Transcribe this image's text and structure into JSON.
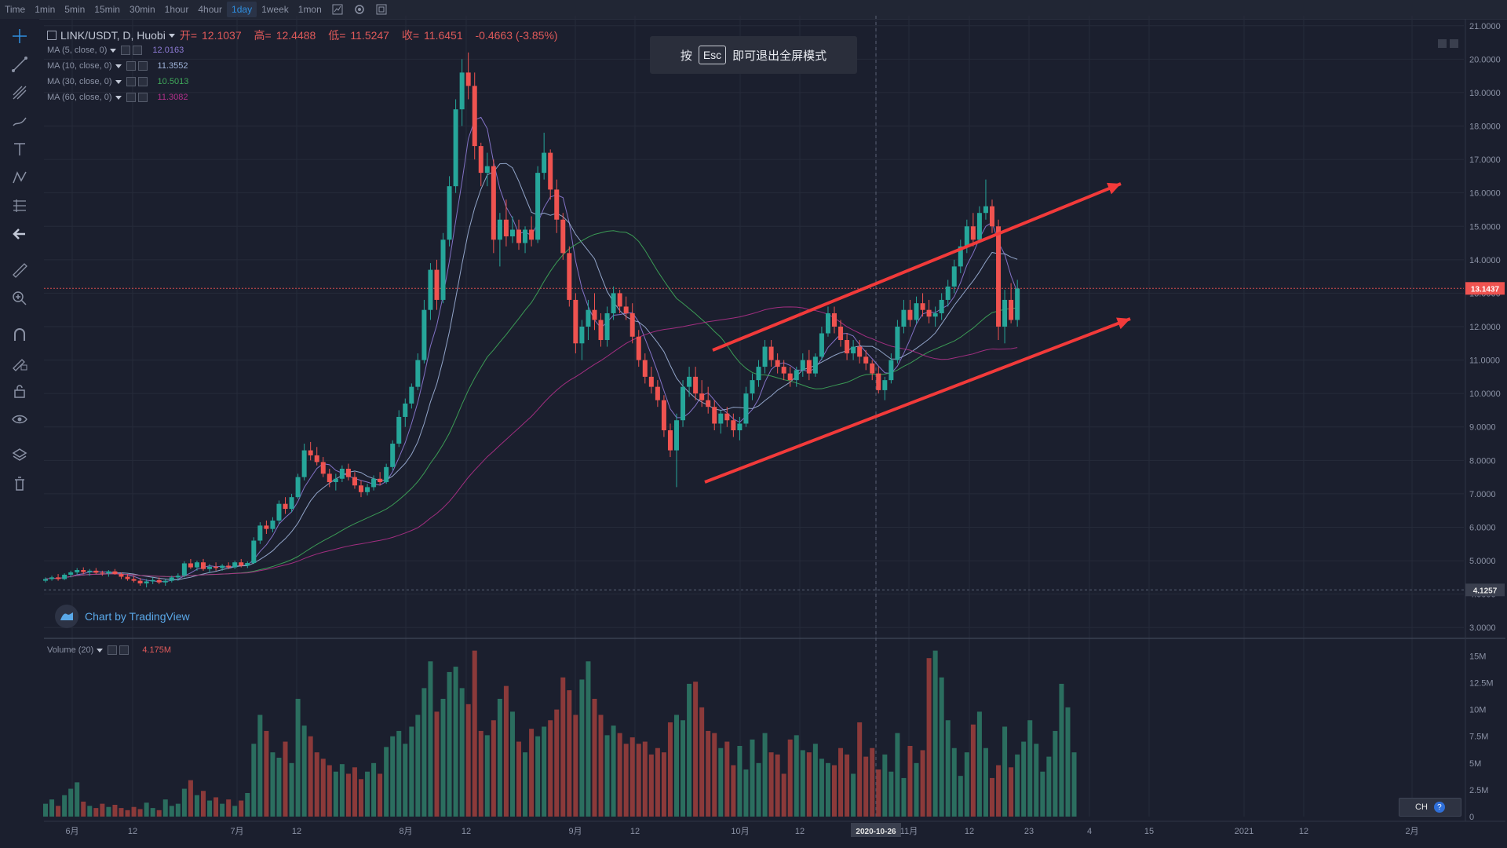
{
  "toolbar": {
    "intervals": [
      "Time",
      "1min",
      "5min",
      "15min",
      "30min",
      "1hour",
      "4hour",
      "1day",
      "1week",
      "1mon"
    ],
    "active": "1day",
    "icons": [
      "chart-type-icon",
      "settings-icon",
      "fullscreen-icon"
    ]
  },
  "left_tools": [
    "crosshair-icon",
    "trend-line-icon",
    "fib-tool-icon",
    "brush-icon",
    "text-icon",
    "pattern-icon",
    "prediction-icon",
    "back-arrow-icon",
    "ruler-icon",
    "zoom-in-icon",
    "magnet-icon",
    "lock-drawing-icon",
    "lock-icon",
    "eye-icon",
    "layers-icon",
    "trash-icon"
  ],
  "legend": {
    "symbol": "LINK/USDT, D, Huobi",
    "open_label": "开=",
    "open": "12.1037",
    "high_label": "高=",
    "high": "12.4488",
    "low_label": "低=",
    "low": "11.5247",
    "close_label": "收=",
    "close": "11.6451",
    "change": "-0.4663 (-3.85%)"
  },
  "mas": [
    {
      "label": "MA (5, close, 0)",
      "value": "12.0163",
      "color": "#8e7bd6"
    },
    {
      "label": "MA (10, close, 0)",
      "value": "11.3552",
      "color": "#9fb3d9"
    },
    {
      "label": "MA (30, close, 0)",
      "value": "10.5013",
      "color": "#3fa85a"
    },
    {
      "label": "MA (60, close, 0)",
      "value": "11.3082",
      "color": "#b0308a"
    }
  ],
  "esc_hint": {
    "before": "按",
    "key": "Esc",
    "after": "即可退出全屏模式"
  },
  "watermark": "Chart by TradingView",
  "volume_legend": {
    "label": "Volume (20)",
    "value": "4.175M"
  },
  "lang_button": {
    "label": "CH",
    "help": "?"
  },
  "colors": {
    "up": "#26a69a",
    "down": "#ef5350",
    "up_vol": "#2b6e5f",
    "down_vol": "#8b3a3a",
    "arrow": "#f23a3a",
    "bg": "#1b1f2e",
    "grid": "#262b3a"
  },
  "chart_data": {
    "type": "candlestick",
    "title": "LINK/USDT",
    "price_axis": {
      "ticks": [
        "21.0000",
        "20.0000",
        "19.0000",
        "18.0000",
        "17.0000",
        "16.0000",
        "15.0000",
        "14.0000",
        "13.0000",
        "12.0000",
        "11.0000",
        "10.0000",
        "9.0000",
        "8.0000",
        "7.0000",
        "6.0000",
        "5.0000",
        "4.0000",
        "3.0000"
      ],
      "range": [
        2.7,
        21.3
      ]
    },
    "volume_axis": {
      "ticks": [
        "15M",
        "12.5M",
        "10M",
        "7.5M",
        "5M",
        "2.5M",
        "0"
      ],
      "range": [
        0,
        16.5
      ]
    },
    "x_axis": {
      "ticks": [
        "6月",
        "12",
        "7月",
        "12",
        "8月",
        "12",
        "9月",
        "12",
        "10月",
        "12",
        "2020-10-26",
        "11月",
        "12",
        "23",
        "4",
        "15",
        "2021",
        "12",
        "2月"
      ]
    },
    "price_labels": {
      "current": "13.1437",
      "low_ref": "4.1257"
    },
    "annotations": [
      "upper-channel-arrow",
      "lower-channel-arrow"
    ],
    "ohlc": [
      [
        4.4,
        4.5,
        4.35,
        4.45
      ],
      [
        4.45,
        4.55,
        4.4,
        4.5
      ],
      [
        4.5,
        4.6,
        4.4,
        4.45
      ],
      [
        4.45,
        4.62,
        4.42,
        4.58
      ],
      [
        4.58,
        4.7,
        4.5,
        4.65
      ],
      [
        4.65,
        4.78,
        4.58,
        4.72
      ],
      [
        4.72,
        4.8,
        4.6,
        4.66
      ],
      [
        4.66,
        4.75,
        4.55,
        4.7
      ],
      [
        4.7,
        4.78,
        4.6,
        4.64
      ],
      [
        4.64,
        4.7,
        4.55,
        4.62
      ],
      [
        4.62,
        4.72,
        4.52,
        4.68
      ],
      [
        4.68,
        4.75,
        4.58,
        4.6
      ],
      [
        4.6,
        4.65,
        4.45,
        4.52
      ],
      [
        4.52,
        4.6,
        4.4,
        4.45
      ],
      [
        4.45,
        4.55,
        4.35,
        4.4
      ],
      [
        4.4,
        4.48,
        4.25,
        4.32
      ],
      [
        4.32,
        4.45,
        4.2,
        4.38
      ],
      [
        4.38,
        4.5,
        4.3,
        4.42
      ],
      [
        4.42,
        4.5,
        4.3,
        4.35
      ],
      [
        4.35,
        4.45,
        4.25,
        4.4
      ],
      [
        4.4,
        4.55,
        4.35,
        4.5
      ],
      [
        4.5,
        4.62,
        4.4,
        4.55
      ],
      [
        4.55,
        4.98,
        4.5,
        4.92
      ],
      [
        4.92,
        5.05,
        4.75,
        4.8
      ],
      [
        4.8,
        5.0,
        4.7,
        4.95
      ],
      [
        4.95,
        5.05,
        4.7,
        4.75
      ],
      [
        4.75,
        4.9,
        4.65,
        4.82
      ],
      [
        4.82,
        4.95,
        4.7,
        4.78
      ],
      [
        4.78,
        4.9,
        4.7,
        4.85
      ],
      [
        4.85,
        4.95,
        4.75,
        4.8
      ],
      [
        4.8,
        5.0,
        4.75,
        4.95
      ],
      [
        4.95,
        5.05,
        4.8,
        4.85
      ],
      [
        4.85,
        4.98,
        4.78,
        4.93
      ],
      [
        4.93,
        5.7,
        4.9,
        5.6
      ],
      [
        5.6,
        6.15,
        5.5,
        6.05
      ],
      [
        6.05,
        6.2,
        5.8,
        5.95
      ],
      [
        5.95,
        6.3,
        5.85,
        6.2
      ],
      [
        6.2,
        6.8,
        6.1,
        6.7
      ],
      [
        6.7,
        6.9,
        6.4,
        6.55
      ],
      [
        6.55,
        7.0,
        6.45,
        6.9
      ],
      [
        6.9,
        7.6,
        6.85,
        7.5
      ],
      [
        7.5,
        8.5,
        7.4,
        8.3
      ],
      [
        8.3,
        8.55,
        8.0,
        8.15
      ],
      [
        8.15,
        8.4,
        7.85,
        7.95
      ],
      [
        7.95,
        8.1,
        7.5,
        7.6
      ],
      [
        7.6,
        7.75,
        7.2,
        7.35
      ],
      [
        7.35,
        7.6,
        7.1,
        7.45
      ],
      [
        7.45,
        7.85,
        7.35,
        7.75
      ],
      [
        7.75,
        7.9,
        7.4,
        7.5
      ],
      [
        7.5,
        7.65,
        7.15,
        7.25
      ],
      [
        7.25,
        7.4,
        6.9,
        7.05
      ],
      [
        7.05,
        7.3,
        6.95,
        7.2
      ],
      [
        7.2,
        7.55,
        7.1,
        7.45
      ],
      [
        7.45,
        7.65,
        7.25,
        7.35
      ],
      [
        7.35,
        7.9,
        7.3,
        7.8
      ],
      [
        7.8,
        8.6,
        7.7,
        8.5
      ],
      [
        8.5,
        9.5,
        8.4,
        9.3
      ],
      [
        9.3,
        9.85,
        9.0,
        9.7
      ],
      [
        9.7,
        10.3,
        9.55,
        10.2
      ],
      [
        10.2,
        11.2,
        10.1,
        11.0
      ],
      [
        11.0,
        12.8,
        10.9,
        12.5
      ],
      [
        12.5,
        13.9,
        12.2,
        13.7
      ],
      [
        13.7,
        14.0,
        12.5,
        12.8
      ],
      [
        12.8,
        14.8,
        12.7,
        14.6
      ],
      [
        14.6,
        16.5,
        14.4,
        16.2
      ],
      [
        16.2,
        18.8,
        16.0,
        18.5
      ],
      [
        18.5,
        20.0,
        18.0,
        19.6
      ],
      [
        19.6,
        20.2,
        18.8,
        19.2
      ],
      [
        19.2,
        19.6,
        17.0,
        17.4
      ],
      [
        17.4,
        17.5,
        16.2,
        16.6
      ],
      [
        16.6,
        17.2,
        16.2,
        16.8
      ],
      [
        16.8,
        17.0,
        14.2,
        14.6
      ],
      [
        14.6,
        15.4,
        13.8,
        15.2
      ],
      [
        15.2,
        15.8,
        14.4,
        14.7
      ],
      [
        14.7,
        15.3,
        14.5,
        14.9
      ],
      [
        14.9,
        15.2,
        14.3,
        14.5
      ],
      [
        14.5,
        15.0,
        14.2,
        14.9
      ],
      [
        14.9,
        15.3,
        14.4,
        14.6
      ],
      [
        14.6,
        16.8,
        14.5,
        16.6
      ],
      [
        16.6,
        17.8,
        16.4,
        17.2
      ],
      [
        17.2,
        17.3,
        15.8,
        16.1
      ],
      [
        16.1,
        16.4,
        14.8,
        15.2
      ],
      [
        15.2,
        15.4,
        14.0,
        14.2
      ],
      [
        14.2,
        14.4,
        12.6,
        12.8
      ],
      [
        12.8,
        13.0,
        11.2,
        11.5
      ],
      [
        11.5,
        12.2,
        11.0,
        12.0
      ],
      [
        12.0,
        12.8,
        11.6,
        12.5
      ],
      [
        12.5,
        13.0,
        11.9,
        12.2
      ],
      [
        12.2,
        12.4,
        11.4,
        11.6
      ],
      [
        11.6,
        12.6,
        11.4,
        12.4
      ],
      [
        12.4,
        13.2,
        12.2,
        13.0
      ],
      [
        13.0,
        13.1,
        12.4,
        12.6
      ],
      [
        12.6,
        12.9,
        12.2,
        12.4
      ],
      [
        12.4,
        12.7,
        11.5,
        11.7
      ],
      [
        11.7,
        11.9,
        10.8,
        11.0
      ],
      [
        11.0,
        11.2,
        10.3,
        10.5
      ],
      [
        10.5,
        10.8,
        10.0,
        10.2
      ],
      [
        10.2,
        10.4,
        9.6,
        9.8
      ],
      [
        9.8,
        9.95,
        8.7,
        8.9
      ],
      [
        8.9,
        9.1,
        8.1,
        8.3
      ],
      [
        8.3,
        9.4,
        7.2,
        9.2
      ],
      [
        9.2,
        10.4,
        9.0,
        10.2
      ],
      [
        10.2,
        10.8,
        9.9,
        10.5
      ],
      [
        10.5,
        10.8,
        9.8,
        10.0
      ],
      [
        10.0,
        10.4,
        9.6,
        9.8
      ],
      [
        9.8,
        10.2,
        9.4,
        9.6
      ],
      [
        9.6,
        9.8,
        8.9,
        9.1
      ],
      [
        9.1,
        9.5,
        8.8,
        9.4
      ],
      [
        9.4,
        9.6,
        9.0,
        9.2
      ],
      [
        9.2,
        9.4,
        8.7,
        8.9
      ],
      [
        8.9,
        9.3,
        8.6,
        9.1
      ],
      [
        9.1,
        10.2,
        9.0,
        10.0
      ],
      [
        10.0,
        10.6,
        9.8,
        10.4
      ],
      [
        10.4,
        11.0,
        10.2,
        10.8
      ],
      [
        10.8,
        11.6,
        10.6,
        11.4
      ],
      [
        11.4,
        11.6,
        10.8,
        11.0
      ],
      [
        11.0,
        11.2,
        10.6,
        10.8
      ],
      [
        10.8,
        11.0,
        10.4,
        10.6
      ],
      [
        10.6,
        10.8,
        10.2,
        10.4
      ],
      [
        10.4,
        10.8,
        10.2,
        10.7
      ],
      [
        10.7,
        11.2,
        10.5,
        11.0
      ],
      [
        11.0,
        11.3,
        10.4,
        10.6
      ],
      [
        10.6,
        11.2,
        10.5,
        11.1
      ],
      [
        11.1,
        12.0,
        11.0,
        11.8
      ],
      [
        11.8,
        12.6,
        11.7,
        12.4
      ],
      [
        12.4,
        12.6,
        11.8,
        12.0
      ],
      [
        12.0,
        12.2,
        11.4,
        11.6
      ],
      [
        11.6,
        11.8,
        11.0,
        11.2
      ],
      [
        11.2,
        11.6,
        11.0,
        11.4
      ],
      [
        11.4,
        11.6,
        10.9,
        11.1
      ],
      [
        11.1,
        11.3,
        10.7,
        10.9
      ],
      [
        10.9,
        11.0,
        10.4,
        10.6
      ],
      [
        10.6,
        10.8,
        10.0,
        10.1
      ],
      [
        10.1,
        10.5,
        9.8,
        10.4
      ],
      [
        10.4,
        11.2,
        10.3,
        11.0
      ],
      [
        11.0,
        12.2,
        10.9,
        12.0
      ],
      [
        12.0,
        12.8,
        11.8,
        12.5
      ],
      [
        12.5,
        12.8,
        12.0,
        12.2
      ],
      [
        12.2,
        12.9,
        12.1,
        12.7
      ],
      [
        12.7,
        13.0,
        12.3,
        12.5
      ],
      [
        12.5,
        12.8,
        12.1,
        12.3
      ],
      [
        12.3,
        12.6,
        12.0,
        12.4
      ],
      [
        12.4,
        13.0,
        12.2,
        12.8
      ],
      [
        12.8,
        13.4,
        12.6,
        13.2
      ],
      [
        13.2,
        14.0,
        13.0,
        13.8
      ],
      [
        13.8,
        14.6,
        13.6,
        14.4
      ],
      [
        14.4,
        15.2,
        14.2,
        15.0
      ],
      [
        15.0,
        15.4,
        14.4,
        14.6
      ],
      [
        14.6,
        15.6,
        14.5,
        15.4
      ],
      [
        15.4,
        16.4,
        15.2,
        15.6
      ],
      [
        15.6,
        15.8,
        14.8,
        15.0
      ],
      [
        15.0,
        15.2,
        11.6,
        12.0
      ],
      [
        12.0,
        13.1,
        11.5,
        12.8
      ],
      [
        12.8,
        13.3,
        12.1,
        12.2
      ],
      [
        12.2,
        13.4,
        12.0,
        13.14
      ]
    ],
    "volume_m": [
      1.2,
      1.6,
      1.0,
      2.0,
      2.6,
      3.2,
      1.4,
      1.0,
      0.8,
      1.2,
      0.9,
      1.1,
      0.8,
      0.6,
      0.9,
      0.7,
      1.3,
      0.8,
      0.6,
      1.6,
      1.0,
      1.2,
      2.6,
      3.4,
      2.0,
      2.4,
      1.5,
      1.8,
      1.2,
      1.6,
      1.0,
      1.5,
      2.2,
      6.8,
      9.5,
      8.0,
      6.0,
      5.5,
      7.0,
      5.0,
      11.0,
      8.5,
      7.5,
      6.0,
      5.4,
      4.8,
      4.2,
      4.9,
      4.0,
      4.6,
      3.5,
      4.2,
      5.0,
      4.0,
      6.5,
      7.5,
      8.0,
      6.8,
      8.4,
      9.5,
      12.0,
      14.5,
      9.8,
      11.0,
      13.5,
      14.0,
      12.0,
      10.5,
      15.5,
      8.0,
      7.6,
      9.0,
      11.0,
      12.2,
      9.8,
      7.0,
      6.0,
      8.2,
      7.5,
      8.4,
      9.0,
      10.0,
      13.0,
      11.8,
      9.5,
      12.8,
      14.5,
      11.0,
      9.5,
      7.6,
      8.5,
      7.8,
      6.8,
      7.4,
      6.8,
      7.0,
      5.8,
      6.4,
      6.0,
      8.8,
      9.5,
      9.0,
      12.4,
      12.6,
      10.2,
      8.0,
      7.8,
      6.4,
      7.0,
      4.8,
      6.6,
      4.4,
      7.2,
      5.0,
      7.8,
      6.0,
      5.8,
      4.0,
      7.2,
      7.6,
      6.2,
      6.0,
      6.8,
      5.4,
      5.0,
      4.8,
      6.4,
      5.8,
      4.0,
      8.8,
      5.6,
      6.4,
      4.4,
      5.8,
      4.2,
      7.8,
      3.6,
      6.6,
      5.0,
      6.2,
      14.8,
      15.5,
      13.0,
      9.0,
      6.4,
      3.8,
      6.0,
      8.6,
      9.8,
      6.4,
      3.6,
      4.8,
      8.4,
      4.6,
      5.8,
      7.0,
      9.0,
      6.8,
      4.2,
      5.6,
      8.0,
      12.4,
      10.2,
      6.0
    ]
  }
}
